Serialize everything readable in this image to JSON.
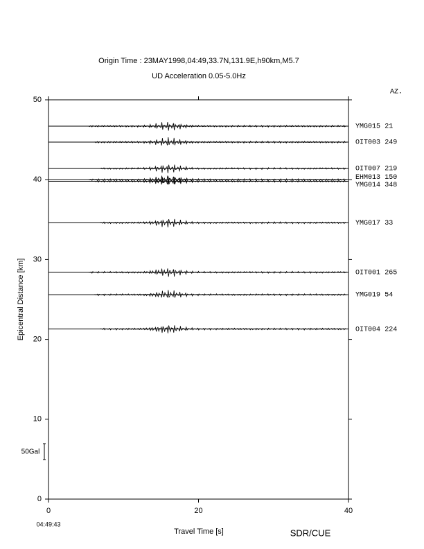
{
  "chart_data": {
    "type": "record_section",
    "title": "Origin Time : 23MAY1998,04:49,33.7N,131.9E,h90km,M5.7",
    "subtitle": "UD Acceleration 0.05-5.0Hz",
    "x_label": "Travel Time [s]",
    "y_label": "Epicentral Distance [km]",
    "azimuth_header": "AZ.",
    "start_time": "04:49:43",
    "scale_label": "50Gal",
    "credit": "SDR/CUE",
    "xlim": [
      0,
      40
    ],
    "xticks": [
      0,
      20,
      40
    ],
    "ylim": [
      0,
      50
    ],
    "yticks": [
      0,
      10,
      20,
      30,
      40,
      50
    ],
    "color": "#000000",
    "series": [
      {
        "name": "YMG015",
        "azimuth": 21,
        "distance": 46.7
      },
      {
        "name": "OIT003",
        "azimuth": 249,
        "distance": 44.7
      },
      {
        "name": "OIT007",
        "azimuth": 219,
        "distance": 41.4
      },
      {
        "name": "EHM013",
        "azimuth": 150,
        "distance": 40.0
      },
      {
        "name": "YMG014",
        "azimuth": 348,
        "distance": 39.8
      },
      {
        "name": "YMG017",
        "azimuth": 33,
        "distance": 34.6
      },
      {
        "name": "OIT001",
        "azimuth": 265,
        "distance": 28.4
      },
      {
        "name": "YMG019",
        "azimuth": 54,
        "distance": 25.6
      },
      {
        "name": "OIT004",
        "azimuth": 224,
        "distance": 21.3
      }
    ]
  }
}
